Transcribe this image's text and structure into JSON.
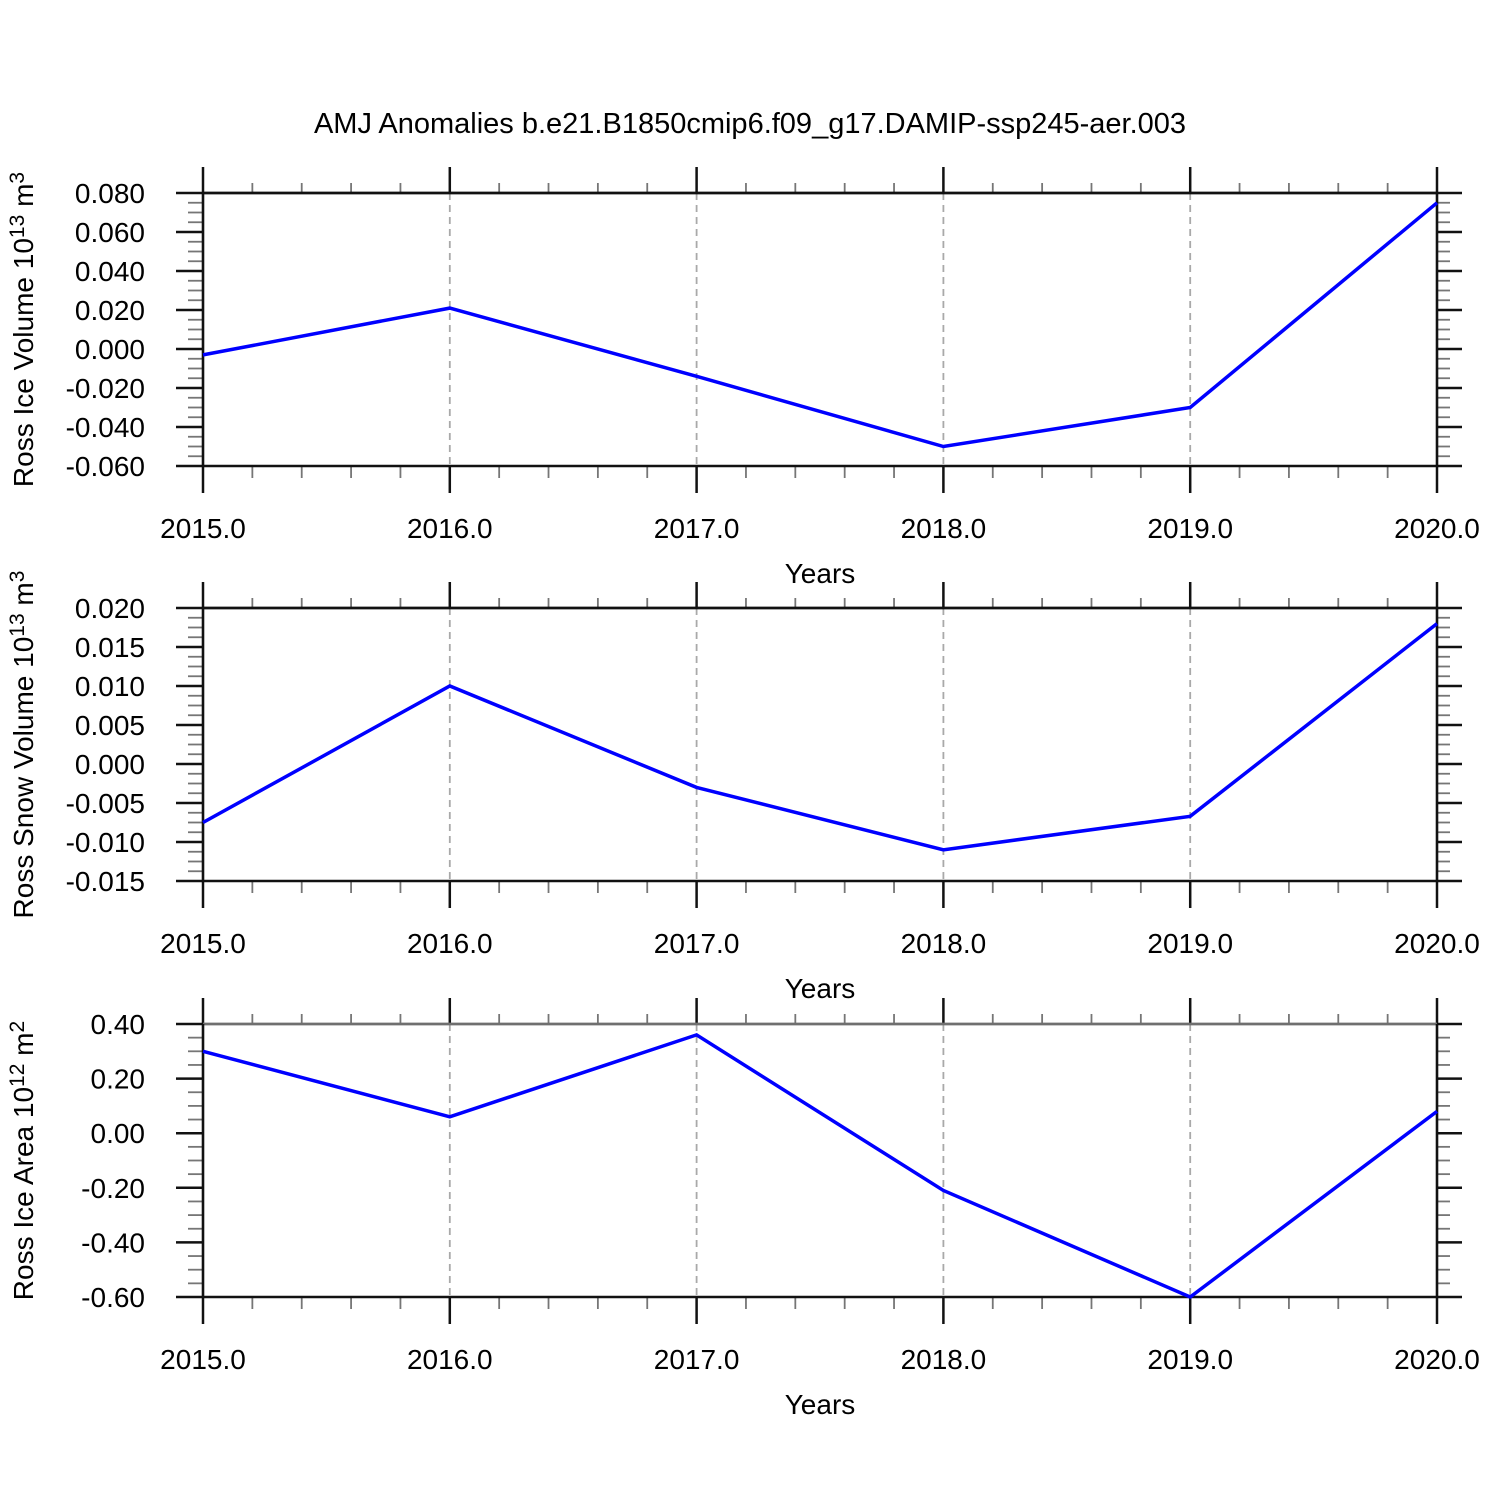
{
  "title": "AMJ Anomalies b.e21.B1850cmip6.f09_g17.DAMIP-ssp245-aer.003",
  "colors": {
    "line": "#0000ff",
    "axis": "#111111",
    "panel3_top_frame": "#6f6f6f",
    "minor_tick": "#767676",
    "grid": "#a9a9a9",
    "text": "#000000",
    "background": "#ffffff"
  },
  "chart_data": [
    {
      "type": "line",
      "series_name": "Ross Ice Volume anomaly",
      "x": [
        2015,
        2016,
        2017,
        2018,
        2019,
        2020
      ],
      "values": [
        -0.003,
        0.021,
        -0.014,
        -0.05,
        -0.03,
        0.075
      ],
      "xlabel": "Years",
      "ylabel": "Ross Ice Volume 10^13^ m^3^",
      "xlim": [
        2015,
        2020
      ],
      "ylim": [
        -0.06,
        0.08
      ],
      "ytick_step": 0.02,
      "yminor_step": 0.005,
      "xminor_step": 0.2,
      "ytick_labels": [
        "0.080",
        "0.060",
        "0.040",
        "0.020",
        "0.000",
        "-0.020",
        "-0.040",
        "-0.060"
      ],
      "xticks": [
        2015,
        2016,
        2017,
        2018,
        2019,
        2020
      ],
      "xtick_labels": [
        "2015.0",
        "2016.0",
        "2017.0",
        "2018.0",
        "2019.0",
        "2020.0"
      ],
      "grid_x": [
        2016,
        2017,
        2018,
        2019
      ],
      "grid_style": "vertical-dashed",
      "legend": "none"
    },
    {
      "type": "line",
      "series_name": "Ross Snow Volume anomaly",
      "x": [
        2015,
        2016,
        2017,
        2018,
        2019,
        2020
      ],
      "values": [
        -0.0075,
        0.01,
        -0.003,
        -0.011,
        -0.0067,
        0.018
      ],
      "xlabel": "Years",
      "ylabel": "Ross Snow Volume 10^13^ m^3^",
      "xlim": [
        2015,
        2020
      ],
      "ylim": [
        -0.015,
        0.02
      ],
      "ytick_step": 0.005,
      "yminor_step": 0.00125,
      "xminor_step": 0.2,
      "ytick_labels": [
        "0.020",
        "0.015",
        "0.010",
        "0.005",
        "0.000",
        "-0.005",
        "-0.010",
        "-0.015"
      ],
      "xticks": [
        2015,
        2016,
        2017,
        2018,
        2019,
        2020
      ],
      "xtick_labels": [
        "2015.0",
        "2016.0",
        "2017.0",
        "2018.0",
        "2019.0",
        "2020.0"
      ],
      "grid_x": [
        2016,
        2017,
        2018,
        2019
      ],
      "grid_style": "vertical-dashed",
      "legend": "none"
    },
    {
      "type": "line",
      "series_name": "Ross Ice Area anomaly",
      "x": [
        2015,
        2016,
        2017,
        2018,
        2019,
        2020
      ],
      "values": [
        0.3,
        0.06,
        0.36,
        -0.21,
        -0.6,
        0.08
      ],
      "xlabel": "Years",
      "ylabel": "Ross Ice Area 10^12^ m^2^",
      "xlim": [
        2015,
        2020
      ],
      "ylim": [
        -0.6,
        0.4
      ],
      "ytick_step": 0.2,
      "yminor_step": 0.05,
      "xminor_step": 0.2,
      "ytick_labels": [
        "0.40",
        "0.20",
        "0.00",
        "-0.20",
        "-0.40",
        "-0.60"
      ],
      "xticks": [
        2015,
        2016,
        2017,
        2018,
        2019,
        2020
      ],
      "xtick_labels": [
        "2015.0",
        "2016.0",
        "2017.0",
        "2018.0",
        "2019.0",
        "2020.0"
      ],
      "grid_x": [
        2016,
        2017,
        2018,
        2019
      ],
      "grid_style": "vertical-dashed",
      "legend": "none"
    }
  ]
}
